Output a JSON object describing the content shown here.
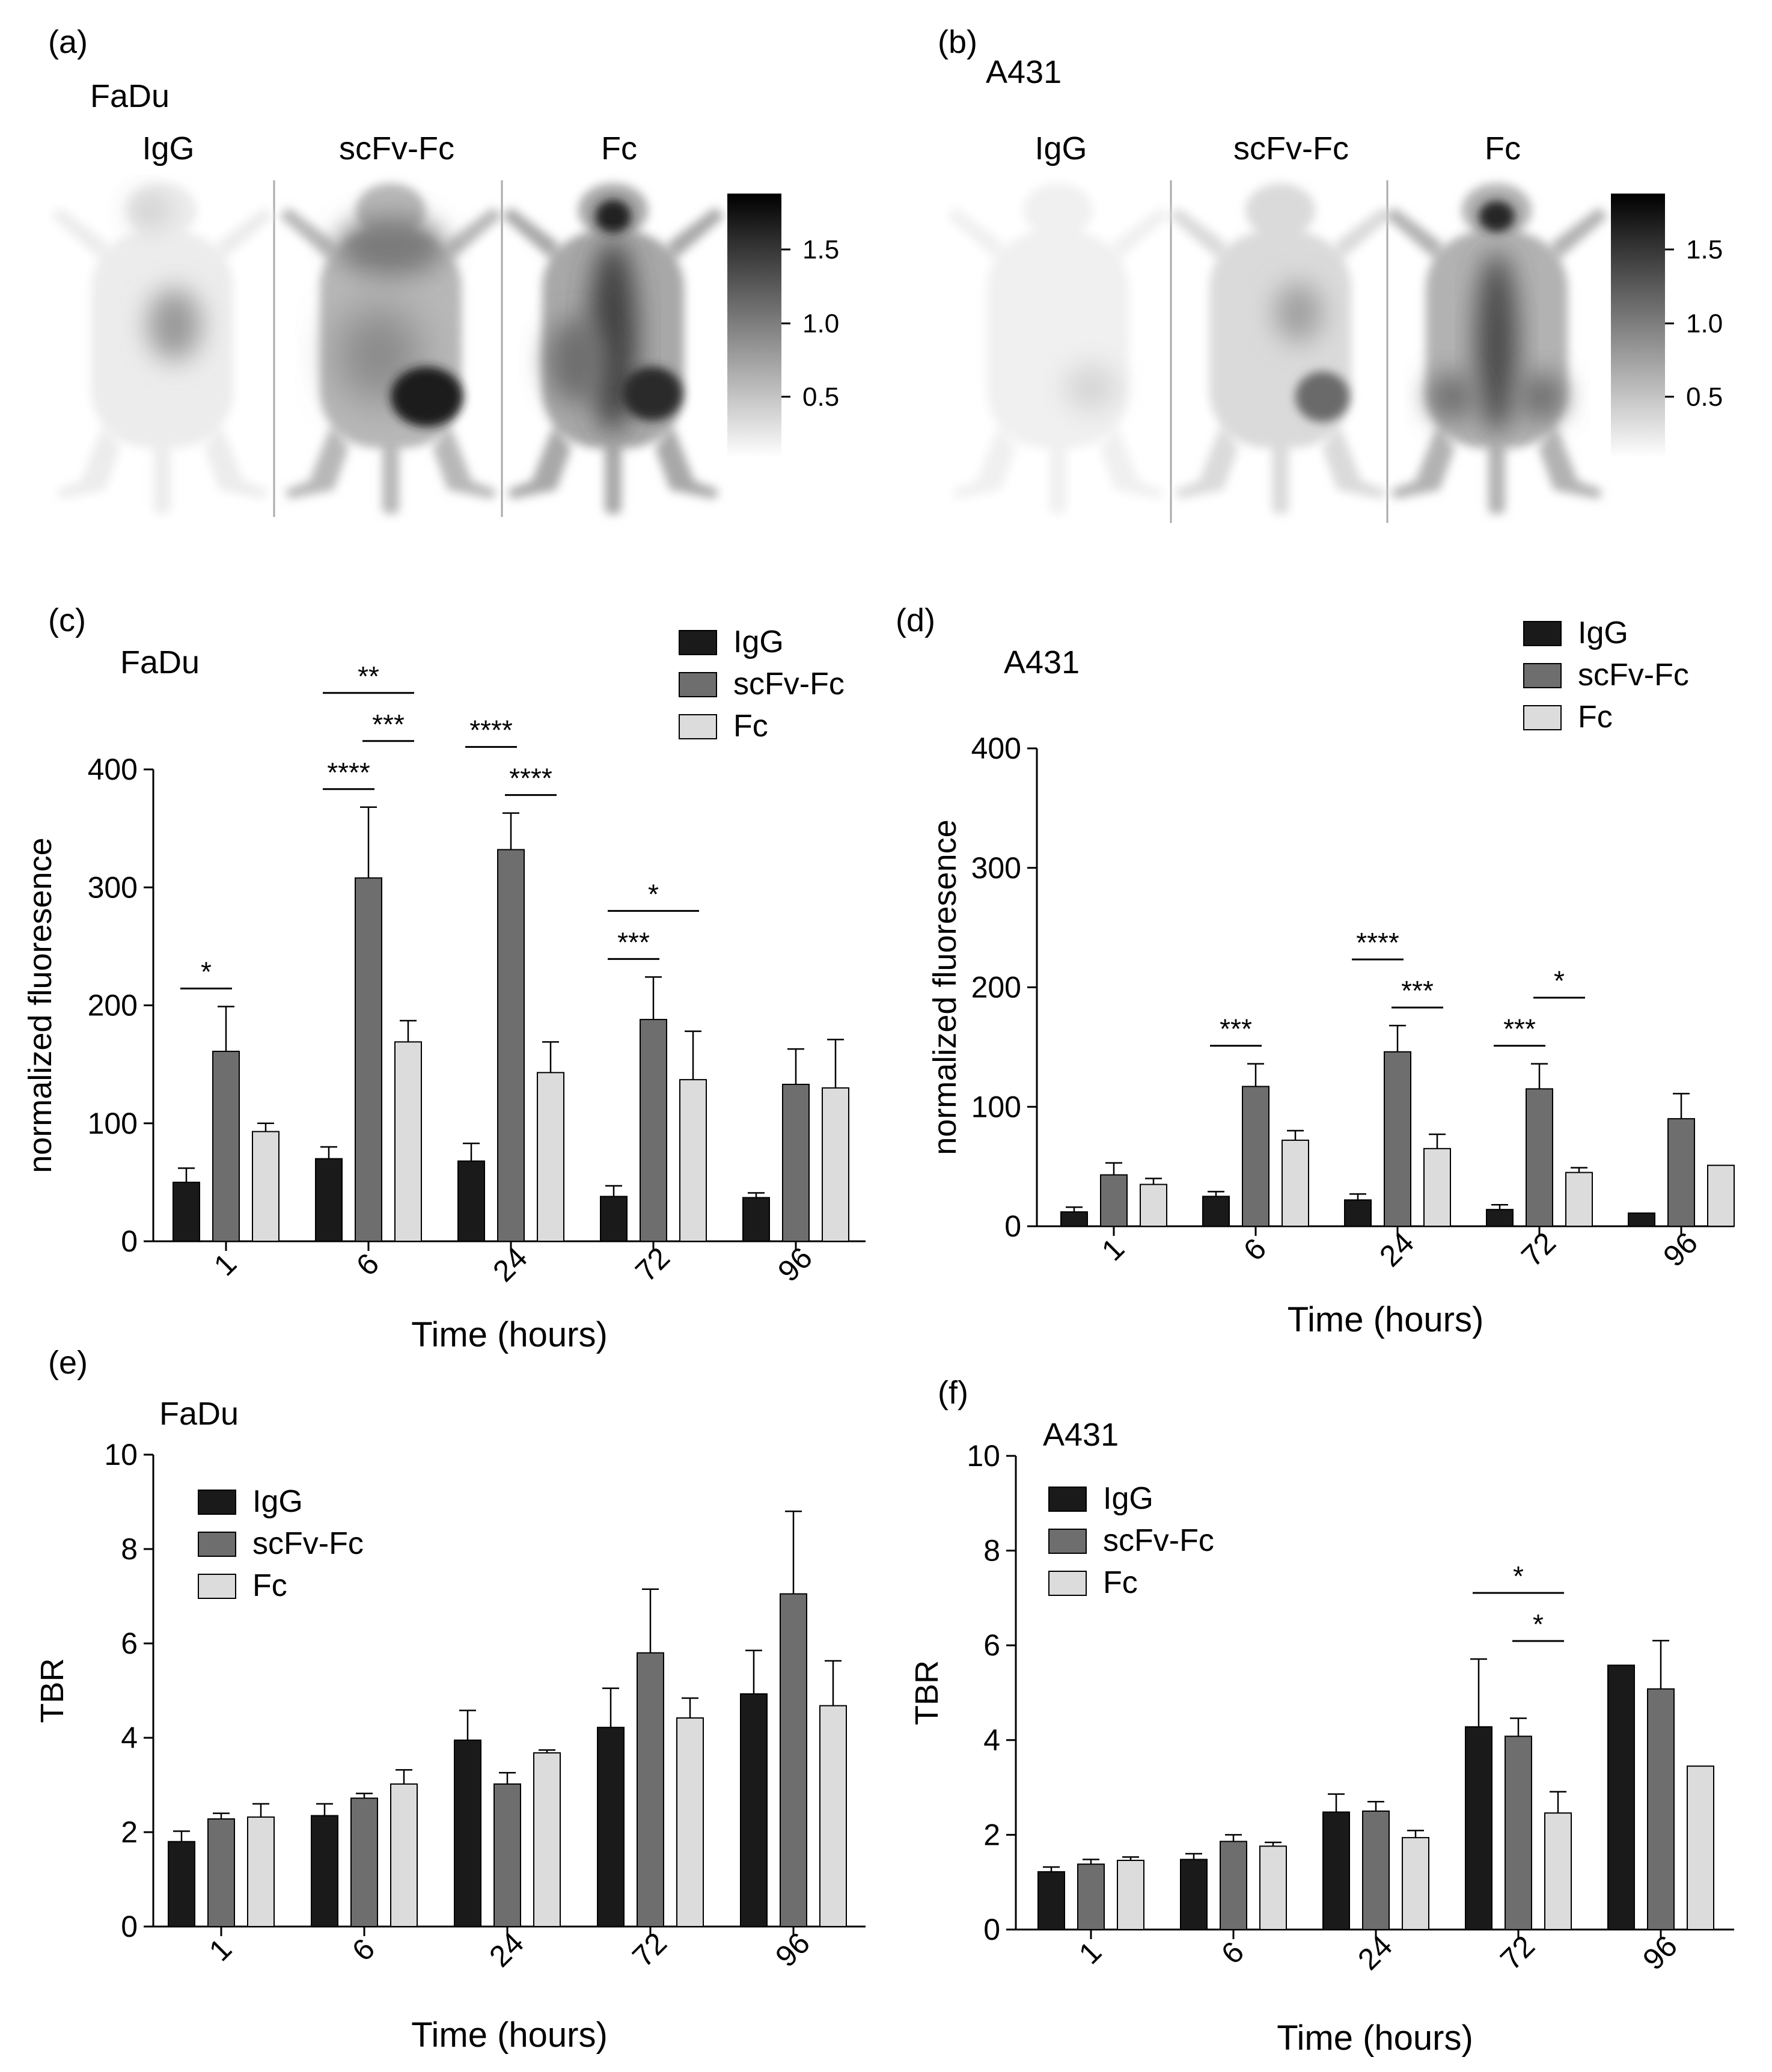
{
  "panels": {
    "a": {
      "letter": "(a)",
      "cell_line": "FaDu",
      "columns": [
        "IgG",
        "scFv-Fc",
        "Fc"
      ],
      "colorbar_ticks": [
        "1.5",
        "1.0",
        "0.5"
      ]
    },
    "b": {
      "letter": "(b)",
      "cell_line": "A431",
      "columns": [
        "IgG",
        "scFv-Fc",
        "Fc"
      ],
      "colorbar_ticks": [
        "1.5",
        "1.0",
        "0.5"
      ]
    }
  },
  "colors": {
    "IgG": "#1a1a1a",
    "scFv-Fc": "#6e6e6e",
    "Fc": "#dcdcdc"
  },
  "chart_data": [
    {
      "panel": "(c)",
      "type": "bar",
      "title": "FaDu",
      "xlabel": "Time (hours)",
      "ylabel": "normalized fluoresence",
      "ylim": [
        0,
        400
      ],
      "yticks": [
        0,
        100,
        200,
        300,
        400
      ],
      "categories": [
        "1",
        "6",
        "24",
        "72",
        "96"
      ],
      "legend": "top-right",
      "series": [
        {
          "name": "IgG",
          "values": [
            50,
            70,
            68,
            38,
            37
          ],
          "errors": [
            12,
            10,
            15,
            9,
            4
          ]
        },
        {
          "name": "scFv-Fc",
          "values": [
            161,
            308,
            332,
            188,
            133
          ],
          "errors": [
            38,
            60,
            31,
            36,
            30
          ]
        },
        {
          "name": "Fc",
          "values": [
            93,
            169,
            143,
            137,
            130
          ],
          "errors": [
            7,
            18,
            26,
            41,
            41
          ]
        }
      ],
      "significance": [
        {
          "group": 0,
          "from": 0,
          "to": 1,
          "stars": "*",
          "level": 1
        },
        {
          "group": 1,
          "from": 0,
          "to": 1,
          "stars": "****",
          "level": 1
        },
        {
          "group": 1,
          "from": 1,
          "to": 2,
          "stars": "***",
          "level": 2
        },
        {
          "group": 1,
          "from": 0,
          "to": 2,
          "stars": "**",
          "level": 3
        },
        {
          "group": 2,
          "from": 0,
          "to": 1,
          "stars": "****",
          "level": 2
        },
        {
          "group": 2,
          "from": 1,
          "to": 2,
          "stars": "****",
          "level": 1
        },
        {
          "group": 3,
          "from": 0,
          "to": 1,
          "stars": "***",
          "level": 1
        },
        {
          "group": 3,
          "from": 0,
          "to": 2,
          "stars": "*",
          "level": 2
        }
      ]
    },
    {
      "panel": "(d)",
      "type": "bar",
      "title": "A431",
      "xlabel": "Time (hours)",
      "ylabel": "normalized fluoresence",
      "ylim": [
        0,
        400
      ],
      "yticks": [
        0,
        100,
        200,
        300,
        400
      ],
      "categories": [
        "1",
        "6",
        "24",
        "72",
        "96"
      ],
      "legend": "top-right",
      "series": [
        {
          "name": "IgG",
          "values": [
            12,
            25,
            22,
            14,
            11
          ],
          "errors": [
            4,
            4,
            5,
            4,
            0
          ]
        },
        {
          "name": "scFv-Fc",
          "values": [
            43,
            117,
            146,
            115,
            90
          ],
          "errors": [
            10,
            19,
            22,
            21,
            21
          ]
        },
        {
          "name": "Fc",
          "values": [
            35,
            72,
            65,
            45,
            51
          ],
          "errors": [
            5,
            8,
            12,
            4,
            0
          ]
        }
      ],
      "significance": [
        {
          "group": 1,
          "from": 0,
          "to": 1,
          "stars": "***",
          "level": 1
        },
        {
          "group": 2,
          "from": 0,
          "to": 1,
          "stars": "****",
          "level": 2
        },
        {
          "group": 2,
          "from": 1,
          "to": 2,
          "stars": "***",
          "level": 1
        },
        {
          "group": 3,
          "from": 0,
          "to": 1,
          "stars": "***",
          "level": 1
        },
        {
          "group": 3,
          "from": 1,
          "to": 2,
          "stars": "*",
          "level": 2
        }
      ]
    },
    {
      "panel": "(e)",
      "type": "bar",
      "title": "FaDu",
      "xlabel": "Time (hours)",
      "ylabel": "TBR",
      "ylim": [
        0,
        10
      ],
      "yticks": [
        0,
        2,
        4,
        6,
        8,
        10
      ],
      "categories": [
        "1",
        "6",
        "24",
        "72",
        "96"
      ],
      "legend": "top-left",
      "series": [
        {
          "name": "IgG",
          "values": [
            1.8,
            2.35,
            3.95,
            4.22,
            4.93
          ],
          "errors": [
            0.22,
            0.25,
            0.63,
            0.83,
            0.92
          ]
        },
        {
          "name": "scFv-Fc",
          "values": [
            2.28,
            2.72,
            3.02,
            5.8,
            7.05
          ],
          "errors": [
            0.12,
            0.1,
            0.24,
            1.35,
            1.75
          ]
        },
        {
          "name": "Fc",
          "values": [
            2.32,
            3.02,
            3.68,
            4.42,
            4.68
          ],
          "errors": [
            0.28,
            0.3,
            0.06,
            0.42,
            0.95
          ]
        }
      ],
      "significance": []
    },
    {
      "panel": "(f)",
      "type": "bar",
      "title": "A431",
      "xlabel": "Time (hours)",
      "ylabel": "TBR",
      "ylim": [
        0,
        10
      ],
      "yticks": [
        0,
        2,
        4,
        6,
        8,
        10
      ],
      "categories": [
        "1",
        "6",
        "24",
        "72",
        "96"
      ],
      "legend": "top-left",
      "series": [
        {
          "name": "IgG",
          "values": [
            1.22,
            1.48,
            2.48,
            4.28,
            5.58
          ],
          "errors": [
            0.1,
            0.12,
            0.38,
            1.43,
            0
          ]
        },
        {
          "name": "scFv-Fc",
          "values": [
            1.38,
            1.86,
            2.5,
            4.08,
            5.08
          ],
          "errors": [
            0.1,
            0.14,
            0.2,
            0.38,
            1.02
          ]
        },
        {
          "name": "Fc",
          "values": [
            1.46,
            1.76,
            1.94,
            2.46,
            3.45
          ],
          "errors": [
            0.07,
            0.08,
            0.15,
            0.45,
            0
          ]
        }
      ],
      "significance": [
        {
          "group": 3,
          "from": 0,
          "to": 2,
          "stars": "*",
          "level": 2
        },
        {
          "group": 3,
          "from": 1,
          "to": 2,
          "stars": "*",
          "level": 1
        }
      ]
    }
  ]
}
